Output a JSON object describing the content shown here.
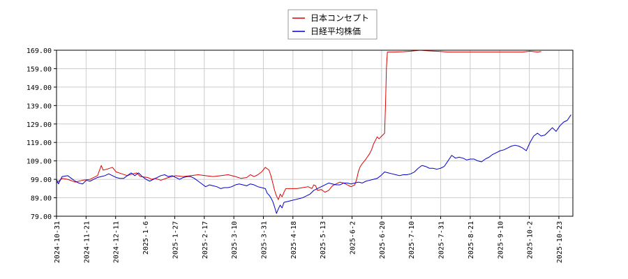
{
  "chart_data": {
    "type": "line",
    "title": "",
    "xlabel": "",
    "ylabel": "",
    "ylim": [
      79,
      169
    ],
    "y_ticks": [
      "169.00",
      "159.00",
      "149.00",
      "139.00",
      "129.00",
      "119.00",
      "109.00",
      "99.00",
      "89.00",
      "79.00"
    ],
    "x_ticks": [
      "2024-10-31",
      "2024-11-21",
      "2024-12-11",
      "2025-1-6",
      "2025-1-27",
      "2025-2-17",
      "2025-3-10",
      "2025-3-31",
      "2025-4-18",
      "2025-5-13",
      "2025-6-2",
      "2025-6-20",
      "2025-7-10",
      "2025-7-31",
      "2025-8-21",
      "2025-9-10",
      "2025-10-2",
      "2025-10-23"
    ],
    "grid": true,
    "legend_position": "top-center",
    "series": [
      {
        "name": "日本コンセプト",
        "color": "#dd0000",
        "values": [
          [
            0,
            97
          ],
          [
            3,
            99.5
          ],
          [
            6,
            99
          ],
          [
            10,
            97.5
          ],
          [
            14,
            98.5
          ],
          [
            18,
            99
          ],
          [
            20,
            100
          ],
          [
            22,
            101
          ],
          [
            24,
            106.5
          ],
          [
            25,
            104
          ],
          [
            27,
            104.5
          ],
          [
            30,
            105.5
          ],
          [
            32,
            103
          ],
          [
            35,
            102
          ],
          [
            38,
            101
          ],
          [
            41,
            102
          ],
          [
            43,
            102.5
          ],
          [
            45,
            100.5
          ],
          [
            49,
            100
          ],
          [
            51,
            99
          ],
          [
            53,
            99.5
          ],
          [
            56,
            98.5
          ],
          [
            60,
            100
          ],
          [
            64,
            101
          ],
          [
            68,
            100.5
          ],
          [
            72,
            101
          ],
          [
            76,
            101.5
          ],
          [
            80,
            101
          ],
          [
            84,
            100.5
          ],
          [
            88,
            101
          ],
          [
            92,
            101.5
          ],
          [
            96,
            100.5
          ],
          [
            99,
            99.5
          ],
          [
            102,
            100
          ],
          [
            104,
            101.5
          ],
          [
            106,
            100.5
          ],
          [
            108,
            101.5
          ],
          [
            110,
            103
          ],
          [
            112,
            105.5
          ],
          [
            114,
            104
          ],
          [
            115,
            101
          ],
          [
            116,
            97
          ],
          [
            117,
            93
          ],
          [
            118,
            90
          ],
          [
            119,
            88
          ],
          [
            120,
            91
          ],
          [
            121,
            89.5
          ],
          [
            122,
            92
          ],
          [
            123,
            94
          ],
          [
            126,
            94
          ],
          [
            129,
            94
          ],
          [
            132,
            94.5
          ],
          [
            135,
            95
          ],
          [
            137,
            94
          ],
          [
            138,
            96
          ],
          [
            139,
            95.5
          ],
          [
            140,
            93
          ],
          [
            142,
            93.5
          ],
          [
            144,
            92
          ],
          [
            146,
            93
          ],
          [
            148,
            95.5
          ],
          [
            150,
            96.5
          ],
          [
            152,
            97.5
          ],
          [
            154,
            97
          ],
          [
            156,
            96
          ],
          [
            158,
            95
          ],
          [
            160,
            96
          ],
          [
            161,
            99
          ],
          [
            162,
            103.5
          ],
          [
            163,
            106
          ],
          [
            164,
            107.5
          ],
          [
            166,
            110
          ],
          [
            168,
            113
          ],
          [
            169,
            115
          ],
          [
            170,
            118
          ],
          [
            171,
            120
          ],
          [
            172,
            122
          ],
          [
            173,
            121
          ],
          [
            174,
            122
          ],
          [
            175,
            123
          ],
          [
            176,
            124
          ],
          [
            176.5,
            140
          ],
          [
            177,
            160
          ],
          [
            177.5,
            168
          ],
          [
            181,
            168
          ],
          [
            186,
            168.2
          ],
          [
            190,
            168.5
          ],
          [
            195,
            169
          ],
          [
            200,
            168.6
          ],
          [
            205,
            168.4
          ],
          [
            210,
            168
          ],
          [
            220,
            168
          ],
          [
            230,
            168
          ],
          [
            240,
            168
          ],
          [
            250,
            168
          ],
          [
            254,
            168.5
          ],
          [
            258,
            168
          ],
          [
            260,
            168.3
          ]
        ]
      },
      {
        "name": "日経平均株価",
        "color": "#0000cc",
        "values": [
          [
            0,
            99
          ],
          [
            1,
            96.5
          ],
          [
            3,
            100.5
          ],
          [
            6,
            101
          ],
          [
            8,
            99.5
          ],
          [
            10,
            98
          ],
          [
            12,
            97
          ],
          [
            14,
            96.5
          ],
          [
            16,
            98.5
          ],
          [
            18,
            98
          ],
          [
            20,
            99
          ],
          [
            22,
            100
          ],
          [
            24,
            100.5
          ],
          [
            26,
            101
          ],
          [
            28,
            102
          ],
          [
            30,
            101
          ],
          [
            32,
            100
          ],
          [
            34,
            99.5
          ],
          [
            36,
            99.5
          ],
          [
            38,
            101
          ],
          [
            40,
            102.5
          ],
          [
            42,
            101
          ],
          [
            44,
            102.5
          ],
          [
            46,
            100.5
          ],
          [
            48,
            99
          ],
          [
            50,
            98
          ],
          [
            52,
            99
          ],
          [
            54,
            100
          ],
          [
            56,
            101
          ],
          [
            58,
            101.5
          ],
          [
            60,
            100.5
          ],
          [
            62,
            101
          ],
          [
            64,
            100
          ],
          [
            66,
            99
          ],
          [
            68,
            100
          ],
          [
            70,
            100.5
          ],
          [
            72,
            100.5
          ],
          [
            74,
            99.5
          ],
          [
            76,
            98
          ],
          [
            78,
            96.5
          ],
          [
            80,
            95
          ],
          [
            82,
            96
          ],
          [
            84,
            95.5
          ],
          [
            86,
            95
          ],
          [
            88,
            94
          ],
          [
            90,
            94.5
          ],
          [
            92,
            94.5
          ],
          [
            94,
            95
          ],
          [
            96,
            96
          ],
          [
            98,
            96.5
          ],
          [
            100,
            96
          ],
          [
            102,
            95.5
          ],
          [
            104,
            96.5
          ],
          [
            106,
            96
          ],
          [
            108,
            95
          ],
          [
            110,
            94.5
          ],
          [
            112,
            94
          ],
          [
            113,
            91.5
          ],
          [
            114,
            90.5
          ],
          [
            115,
            89
          ],
          [
            116,
            87
          ],
          [
            117,
            84
          ],
          [
            118,
            80.5
          ],
          [
            119,
            83
          ],
          [
            120,
            85
          ],
          [
            121,
            83.5
          ],
          [
            122,
            86.5
          ],
          [
            124,
            87
          ],
          [
            126,
            87.5
          ],
          [
            128,
            88
          ],
          [
            130,
            88.5
          ],
          [
            132,
            89
          ],
          [
            134,
            90
          ],
          [
            136,
            91
          ],
          [
            138,
            93
          ],
          [
            140,
            94
          ],
          [
            142,
            95
          ],
          [
            144,
            96
          ],
          [
            146,
            97
          ],
          [
            148,
            96.5
          ],
          [
            150,
            96
          ],
          [
            152,
            96
          ],
          [
            154,
            97
          ],
          [
            156,
            97
          ],
          [
            158,
            96.5
          ],
          [
            160,
            97
          ],
          [
            162,
            97.5
          ],
          [
            164,
            97
          ],
          [
            166,
            98
          ],
          [
            168,
            98.5
          ],
          [
            170,
            99
          ],
          [
            172,
            99.5
          ],
          [
            174,
            101
          ],
          [
            176,
            103
          ],
          [
            178,
            102.5
          ],
          [
            180,
            102
          ],
          [
            182,
            101.5
          ],
          [
            184,
            101
          ],
          [
            186,
            101.5
          ],
          [
            188,
            101.5
          ],
          [
            190,
            102
          ],
          [
            192,
            103
          ],
          [
            194,
            105
          ],
          [
            196,
            106.5
          ],
          [
            198,
            106
          ],
          [
            200,
            105
          ],
          [
            202,
            105
          ],
          [
            204,
            104.5
          ],
          [
            206,
            105
          ],
          [
            208,
            106
          ],
          [
            210,
            109
          ],
          [
            212,
            112
          ],
          [
            214,
            110.5
          ],
          [
            216,
            111
          ],
          [
            218,
            110.5
          ],
          [
            220,
            109.5
          ],
          [
            222,
            110
          ],
          [
            224,
            110
          ],
          [
            226,
            109
          ],
          [
            228,
            108.5
          ],
          [
            230,
            110
          ],
          [
            232,
            111
          ],
          [
            234,
            112.5
          ],
          [
            236,
            113.5
          ],
          [
            238,
            114.5
          ],
          [
            240,
            115
          ],
          [
            242,
            116
          ],
          [
            244,
            117
          ],
          [
            246,
            117.5
          ],
          [
            248,
            117
          ],
          [
            250,
            116
          ],
          [
            252,
            114.5
          ],
          [
            254,
            119
          ],
          [
            256,
            122.5
          ],
          [
            258,
            124
          ],
          [
            260,
            122.5
          ],
          [
            262,
            123
          ],
          [
            264,
            125
          ],
          [
            266,
            127
          ],
          [
            268,
            125
          ],
          [
            270,
            128
          ],
          [
            272,
            130
          ],
          [
            274,
            131
          ],
          [
            276,
            134
          ]
        ]
      }
    ]
  }
}
